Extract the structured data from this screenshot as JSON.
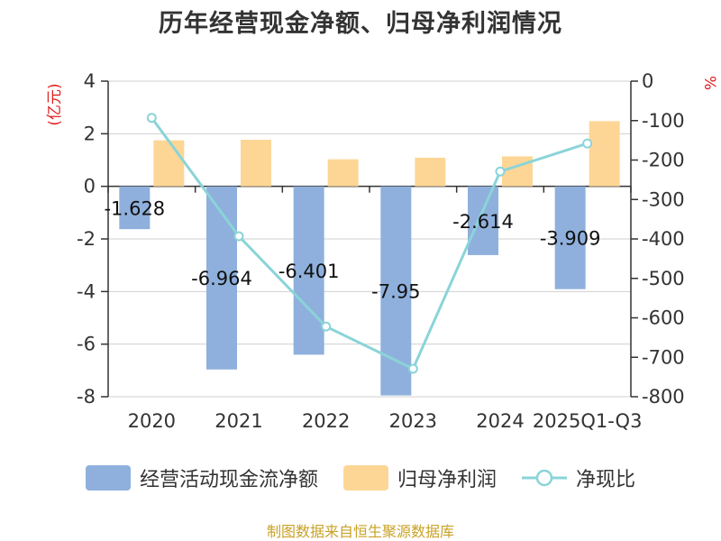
{
  "chart_data": {
    "type": "bar",
    "title": "历年经营现金净额、归母净利润情况",
    "categories": [
      "2020",
      "2021",
      "2022",
      "2023",
      "2024",
      "2025Q1-Q3"
    ],
    "left_axis": {
      "unit": "(亿元)",
      "ylim": [
        -8,
        4
      ],
      "ticks": [
        "4",
        "2",
        "0",
        "-2",
        "-4",
        "-6",
        "-8"
      ]
    },
    "right_axis": {
      "unit": "%",
      "ylim": [
        -800,
        0
      ],
      "ticks": [
        "0",
        "-100",
        "-200",
        "-300",
        "-400",
        "-500",
        "-600",
        "-700",
        "-800"
      ]
    },
    "series": [
      {
        "name": "经营活动现金流净额",
        "type": "bar",
        "axis": "left",
        "color": "#8fb0dc",
        "values": [
          -1.628,
          -6.964,
          -6.401,
          -7.95,
          -2.614,
          -3.909
        ],
        "labels": [
          "-1.628",
          "-6.964",
          "-6.401",
          "-7.95",
          "-2.614",
          "-3.909"
        ]
      },
      {
        "name": "归母净利润",
        "type": "bar",
        "axis": "left",
        "color": "#fdd696",
        "values": [
          1.75,
          1.77,
          1.03,
          1.09,
          1.14,
          2.48
        ]
      },
      {
        "name": "净现比",
        "type": "line",
        "axis": "right",
        "color": "#8ad4d8",
        "values": [
          -93,
          -393,
          -622,
          -729,
          -229,
          -158
        ]
      }
    ],
    "grid": true,
    "legend_position": "bottom"
  },
  "footer": {
    "source": "制图数据来自恒生聚源数据库",
    "source_color": "#c9a227"
  }
}
